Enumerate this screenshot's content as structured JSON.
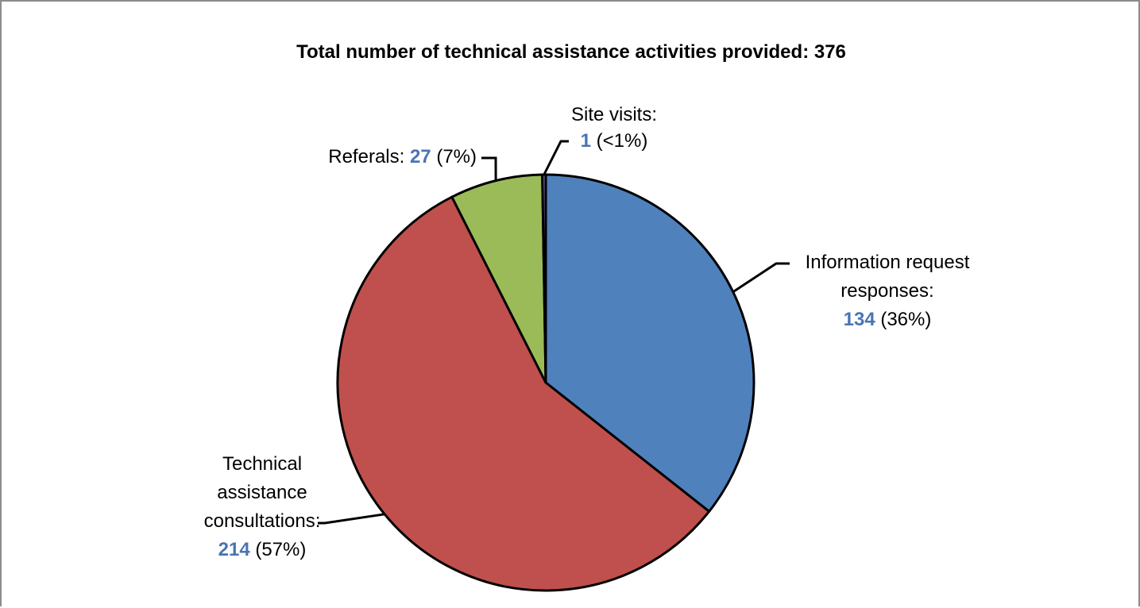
{
  "chart_data": {
    "type": "pie",
    "title": "Total number of technical assistance activities provided: 376",
    "total": 376,
    "slices": [
      {
        "key": "info",
        "label_lines": [
          "Information request",
          "responses:"
        ],
        "value": 134,
        "value_text": "134",
        "pct_text": "(36%)",
        "color": "#4f81bd"
      },
      {
        "key": "tech",
        "label_lines": [
          "Technical",
          "assistance",
          "consultations:"
        ],
        "value": 214,
        "value_text": "214",
        "pct_text": "(57%)",
        "color": "#c0504d"
      },
      {
        "key": "referrals",
        "label_lines": [
          "Referals:"
        ],
        "value": 27,
        "value_text": "27",
        "pct_text": "(7%)",
        "color": "#9bbb59"
      },
      {
        "key": "site",
        "label_lines": [
          "Site visits:"
        ],
        "value": 1,
        "value_text": "1",
        "pct_text": "(<1%)",
        "color": "#8064a2"
      }
    ],
    "value_color": "#4a74b4",
    "legend": "none"
  }
}
